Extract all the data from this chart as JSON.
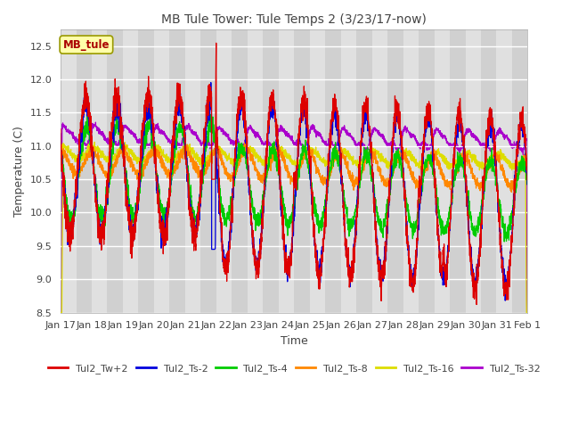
{
  "title": "MB Tule Tower: Tule Temps 2 (3/23/17-now)",
  "xlabel": "Time",
  "ylabel": "Temperature (C)",
  "ylim": [
    8.5,
    12.75
  ],
  "yticks": [
    8.5,
    9.0,
    9.5,
    10.0,
    10.5,
    11.0,
    11.5,
    12.0,
    12.5
  ],
  "xtick_labels": [
    "Jan 17",
    "Jan 18",
    "Jan 19",
    "Jan 20",
    "Jan 21",
    "Jan 22",
    "Jan 23",
    "Jan 24",
    "Jan 25",
    "Jan 26",
    "Jan 27",
    "Jan 28",
    "Jan 29",
    "Jan 30",
    "Jan 31",
    "Feb 1"
  ],
  "series_colors": {
    "Tul2_Tw+2": "#dd0000",
    "Tul2_Ts-2": "#0000dd",
    "Tul2_Ts-4": "#00cc00",
    "Tul2_Ts-8": "#ff8800",
    "Tul2_Ts-16": "#dddd00",
    "Tul2_Ts-32": "#aa00cc"
  },
  "legend_label": "MB_tule",
  "legend_color": "#aa0000",
  "background_color": "#ffffff",
  "plot_bg_color": "#e8e8e8",
  "grid_color": "#ffffff",
  "stripe_colors": [
    "#e0e0e0",
    "#d0d0d0"
  ]
}
